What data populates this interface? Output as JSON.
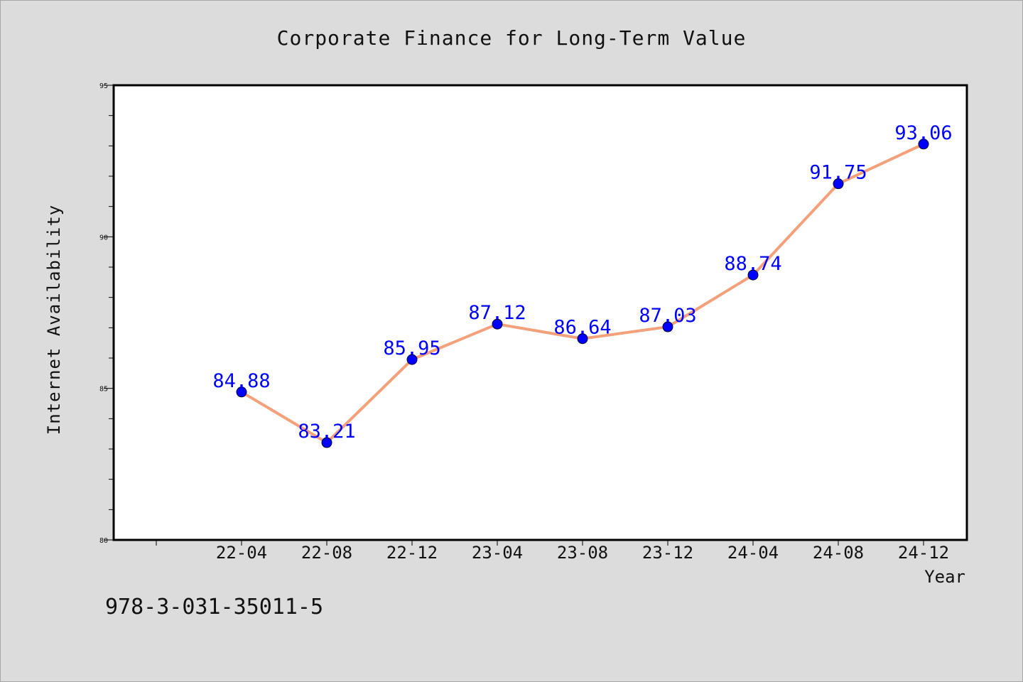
{
  "chart_data": {
    "type": "line",
    "title": "Corporate Finance for Long-Term Value",
    "xlabel": "Year",
    "ylabel": "Internet Availability",
    "categories": [
      "22-04",
      "22-08",
      "22-12",
      "23-04",
      "23-08",
      "23-12",
      "24-04",
      "24-08",
      "24-12"
    ],
    "series": [
      {
        "values": [
          84.88,
          83.21,
          85.95,
          87.12,
          86.64,
          87.03,
          88.74,
          91.75,
          93.06
        ]
      }
    ],
    "data_labels": [
      "84.88",
      "83.21",
      "85.95",
      "87.12",
      "86.64",
      "87.03",
      "88.74",
      "91.75",
      "93.06"
    ],
    "ylim": [
      80,
      95
    ],
    "y_ticks": [
      "80",
      "85",
      "90",
      "95"
    ],
    "grid": false,
    "line_color": "#f4a07a",
    "marker_color": "#0000ff",
    "label_color": "#0000ff"
  },
  "footer_text": "978-3-031-35011-5"
}
